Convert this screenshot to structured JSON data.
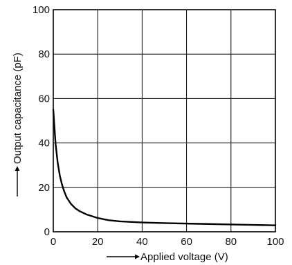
{
  "chart_data": {
    "type": "line",
    "xlabel": "Applied voltage (V)",
    "ylabel": "Output capacitance (pF)",
    "xlim": [
      0,
      100
    ],
    "ylim": [
      0,
      100
    ],
    "x_ticks": [
      "0",
      "20",
      "40",
      "60",
      "80",
      "100"
    ],
    "y_ticks": [
      "0",
      "20",
      "40",
      "60",
      "80",
      "100"
    ],
    "grid": true,
    "series": [
      {
        "x": [
          0,
          1,
          2,
          3,
          4,
          5,
          6,
          8,
          10,
          12,
          15,
          20,
          25,
          30,
          40,
          50,
          60,
          70,
          80,
          90,
          100
        ],
        "y": [
          55,
          40,
          31,
          25,
          21,
          18,
          15.5,
          12.5,
          10.5,
          9.2,
          7.8,
          6.2,
          5.2,
          4.7,
          4.2,
          3.9,
          3.7,
          3.5,
          3.3,
          3.1,
          2.9
        ]
      }
    ]
  }
}
